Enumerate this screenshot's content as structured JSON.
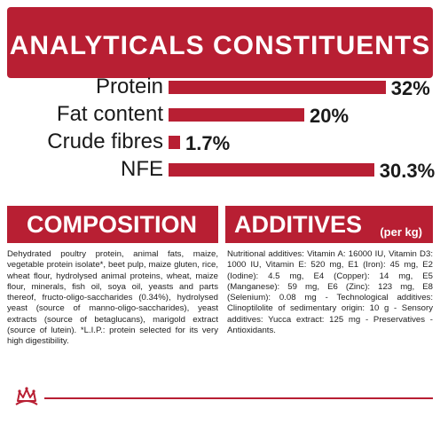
{
  "header": {
    "title": "ANALYTICALS CONSTITUENTS"
  },
  "chart_data": {
    "type": "bar",
    "categories": [
      "Protein",
      "Fat content",
      "Crude fibres",
      "NFE"
    ],
    "values": [
      32,
      20,
      1.7,
      30.3
    ],
    "value_labels": [
      "32%",
      "20%",
      "1.7%",
      "30.3%"
    ],
    "unit": "%",
    "orientation": "horizontal",
    "bar_color": "#b81f33"
  },
  "composition": {
    "title": "COMPOSITION",
    "text": "Dehydrated poultry protein, animal fats, maize, vegetable protein isolate*, beet pulp, maize gluten, rice, wheat flour, hydrolysed animal proteins, wheat, maize flour, minerals, fish oil, soya oil, yeasts and parts thereof, fructo-oligo-saccharides (0.34%), hydrolysed yeast (source of manno-oligo-saccharides), yeast extracts (source of betaglucans), marigold extract (source of lutein). *L.I.P.: protein selected for its very high digestibility."
  },
  "additives": {
    "title": "ADDITIVES",
    "subtitle": "(per kg)",
    "text": "Nutritional additives: Vitamin A: 16000 IU, Vitamin D3: 1000 IU, Vitamin E: 520 mg, E1 (Iron): 45 mg, E2 (Iodine): 4.5 mg, E4 (Copper): 14 mg, E5 (Manganese): 59 mg, E6 (Zinc): 123 mg, E8 (Selenium): 0.08 mg - Technological additives: Clinoptilolite of sedimentary origin: 10 g - Sensory additives: Yucca extract: 125 mg - Preservatives - Antioxidants."
  },
  "colors": {
    "brand_red": "#b81f33"
  },
  "footer": {
    "logo_icon": "royal-canin-crown-icon"
  }
}
